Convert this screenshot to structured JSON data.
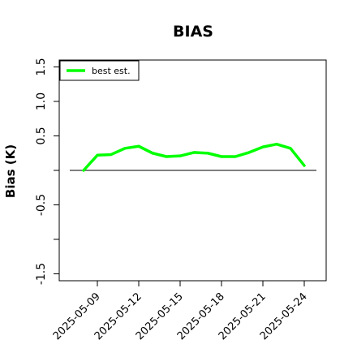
{
  "chart_data": {
    "type": "line",
    "title": "BIAS",
    "ylabel": "Bias (K)",
    "xlabel": "",
    "ylim": [
      -1.6,
      1.6
    ],
    "yticks": [
      -1.5,
      -1.0,
      -0.5,
      0.0,
      0.5,
      1.0,
      1.5
    ],
    "ytick_labels": [
      "-1.5",
      "",
      "-0.5",
      "",
      "0.5",
      "1.0",
      "1.5"
    ],
    "x": [
      "2025-05-08",
      "2025-05-09",
      "2025-05-10",
      "2025-05-11",
      "2025-05-12",
      "2025-05-13",
      "2025-05-14",
      "2025-05-15",
      "2025-05-16",
      "2025-05-17",
      "2025-05-18",
      "2025-05-19",
      "2025-05-20",
      "2025-05-21",
      "2025-05-22",
      "2025-05-23",
      "2025-05-24"
    ],
    "xtick_labels": [
      "2025-05-09",
      "2025-05-12",
      "2025-05-15",
      "2025-05-18",
      "2025-05-21",
      "2025-05-24"
    ],
    "reference_line": 0,
    "grid": false,
    "legend_position": "top-left",
    "series": [
      {
        "name": "best est.",
        "color": "#00ff00",
        "values": [
          0.0,
          0.22,
          0.23,
          0.32,
          0.35,
          0.25,
          0.2,
          0.21,
          0.26,
          0.25,
          0.2,
          0.2,
          0.26,
          0.34,
          0.38,
          0.32,
          0.07
        ]
      }
    ]
  }
}
